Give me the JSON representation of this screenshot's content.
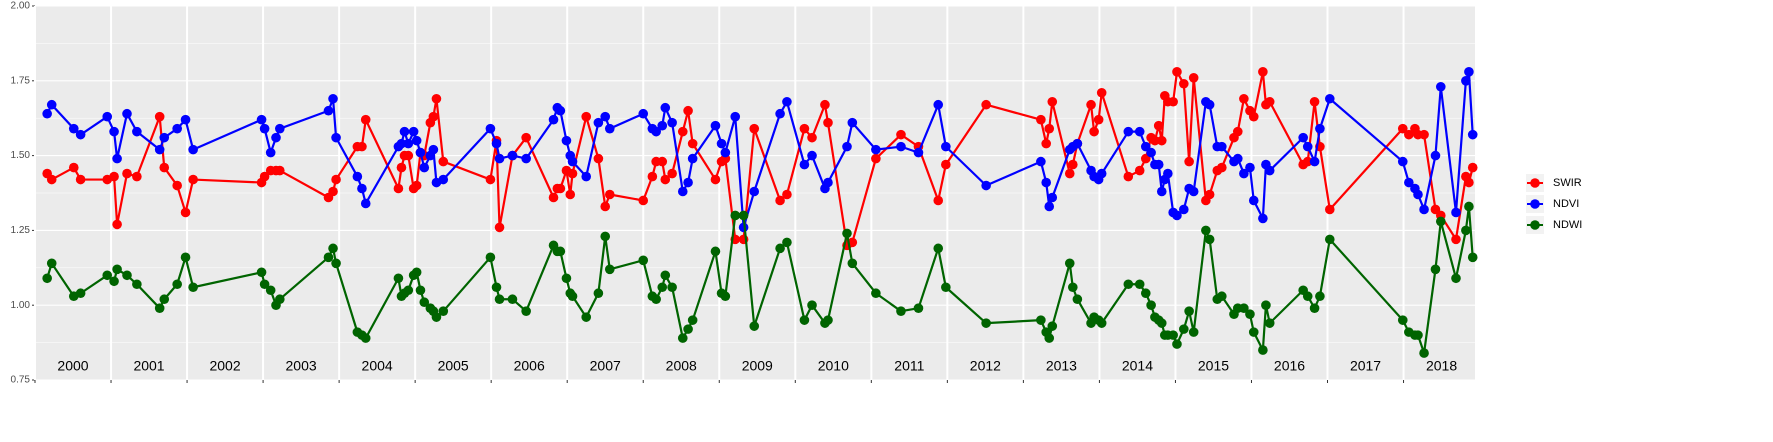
{
  "chart_data": {
    "type": "line",
    "xlim": [
      2000,
      2018.94
    ],
    "ylim": [
      0.75,
      2.0
    ],
    "yticks": [
      {
        "value": 0.75,
        "label": "0.75"
      },
      {
        "value": 1.0,
        "label": "1.00"
      },
      {
        "value": 1.25,
        "label": "1.25"
      },
      {
        "value": 1.5,
        "label": "1.50"
      },
      {
        "value": 1.75,
        "label": "1.75"
      },
      {
        "value": 2.0,
        "label": "2.00"
      }
    ],
    "periods": [
      {
        "label": "2000",
        "start": 2000,
        "end": 2001
      },
      {
        "label": "2001",
        "start": 2001,
        "end": 2002
      },
      {
        "label": "2002",
        "start": 2002,
        "end": 2003
      },
      {
        "label": "2003",
        "start": 2003,
        "end": 2004
      },
      {
        "label": "2004",
        "start": 2004,
        "end": 2005
      },
      {
        "label": "2005",
        "start": 2005,
        "end": 2006
      },
      {
        "label": "2006",
        "start": 2006,
        "end": 2007
      },
      {
        "label": "2007",
        "start": 2007,
        "end": 2008
      },
      {
        "label": "2008",
        "start": 2008,
        "end": 2009
      },
      {
        "label": "2009",
        "start": 2009,
        "end": 2010
      },
      {
        "label": "2010",
        "start": 2010,
        "end": 2011
      },
      {
        "label": "2011",
        "start": 2011,
        "end": 2012
      },
      {
        "label": "2012",
        "start": 2012,
        "end": 2013
      },
      {
        "label": "2013",
        "start": 2013,
        "end": 2014
      },
      {
        "label": "2014",
        "start": 2014,
        "end": 2015
      },
      {
        "label": "2015",
        "start": 2015,
        "end": 2016
      },
      {
        "label": "2016",
        "start": 2016,
        "end": 2017
      },
      {
        "label": "2017",
        "start": 2017,
        "end": 2018
      },
      {
        "label": "2018",
        "start": 2018,
        "end": 2019
      }
    ],
    "grid": true,
    "legend": "right",
    "x": [
      2000.16,
      2000.22,
      2000.51,
      2000.6,
      2000.95,
      2001.04,
      2001.08,
      2001.21,
      2001.34,
      2001.64,
      2001.7,
      2001.87,
      2001.98,
      2002.08,
      2002.98,
      2003.02,
      2003.1,
      2003.17,
      2003.22,
      2003.86,
      2003.92,
      2003.96,
      2004.24,
      2004.3,
      2004.35,
      2004.78,
      2004.82,
      2004.86,
      2004.91,
      2004.98,
      2005.02,
      2005.07,
      2005.12,
      2005.2,
      2005.24,
      2005.28,
      2005.37,
      2005.99,
      2006.07,
      2006.11,
      2006.28,
      2006.46,
      2006.82,
      2006.87,
      2006.91,
      2006.99,
      2007.04,
      2007.07,
      2007.25,
      2007.41,
      2007.5,
      2007.56,
      2008.0,
      2008.12,
      2008.17,
      2008.25,
      2008.29,
      2008.38,
      2008.52,
      2008.59,
      2008.65,
      2008.95,
      2009.03,
      2009.08,
      2009.21,
      2009.32,
      2009.46,
      2009.8,
      2009.89,
      2010.12,
      2010.22,
      2010.39,
      2010.43,
      2010.68,
      2010.75,
      2011.06,
      2011.39,
      2011.62,
      2011.88,
      2011.98,
      2012.51,
      2013.23,
      2013.3,
      2013.34,
      2013.38,
      2013.61,
      2013.65,
      2013.71,
      2013.89,
      2013.93,
      2013.99,
      2014.03,
      2014.38,
      2014.53,
      2014.61,
      2014.68,
      2014.73,
      2014.78,
      2014.82,
      2014.86,
      2014.9,
      2014.97,
      2015.02,
      2015.11,
      2015.18,
      2015.24,
      2015.4,
      2015.45,
      2015.55,
      2015.61,
      2015.77,
      2015.82,
      2015.9,
      2015.98,
      2016.03,
      2016.15,
      2016.19,
      2016.24,
      2016.68,
      2016.74,
      2016.83,
      2016.9,
      2017.03,
      2017.99,
      2018.07,
      2018.15,
      2018.19,
      2018.27,
      2018.42,
      2018.49,
      2018.69,
      2018.82,
      2018.86,
      2018.91
    ],
    "series": [
      {
        "name": "SWIR",
        "color": "#ff0000",
        "values": [
          1.44,
          1.42,
          1.46,
          1.42,
          1.42,
          1.43,
          1.27,
          1.44,
          1.43,
          1.63,
          1.46,
          1.4,
          1.31,
          1.42,
          1.41,
          1.43,
          1.45,
          1.45,
          1.45,
          1.36,
          1.38,
          1.42,
          1.53,
          1.53,
          1.62,
          1.39,
          1.46,
          1.5,
          1.5,
          1.39,
          1.4,
          1.51,
          1.5,
          1.61,
          1.63,
          1.69,
          1.48,
          1.42,
          1.55,
          1.26,
          1.5,
          1.56,
          1.36,
          1.39,
          1.39,
          1.45,
          1.37,
          1.44,
          1.63,
          1.49,
          1.33,
          1.37,
          1.35,
          1.43,
          1.48,
          1.48,
          1.42,
          1.44,
          1.58,
          1.65,
          1.54,
          1.42,
          1.48,
          1.49,
          1.22,
          1.22,
          1.59,
          1.35,
          1.37,
          1.59,
          1.56,
          1.67,
          1.61,
          1.2,
          1.21,
          1.49,
          1.57,
          1.53,
          1.35,
          1.47,
          1.67,
          1.62,
          1.54,
          1.59,
          1.68,
          1.44,
          1.47,
          1.54,
          1.67,
          1.58,
          1.62,
          1.71,
          1.43,
          1.45,
          1.49,
          1.56,
          1.55,
          1.6,
          1.55,
          1.7,
          1.68,
          1.68,
          1.78,
          1.74,
          1.48,
          1.76,
          1.35,
          1.37,
          1.45,
          1.46,
          1.56,
          1.58,
          1.69,
          1.65,
          1.63,
          1.78,
          1.67,
          1.68,
          1.47,
          1.48,
          1.68,
          1.53,
          1.32,
          1.59,
          1.57,
          1.59,
          1.57,
          1.57,
          1.32,
          1.3,
          1.22,
          1.43,
          1.41,
          1.46
        ]
      },
      {
        "name": "NDVI",
        "color": "#0000ff",
        "values": [
          1.64,
          1.67,
          1.59,
          1.57,
          1.63,
          1.58,
          1.49,
          1.64,
          1.58,
          1.52,
          1.56,
          1.59,
          1.62,
          1.52,
          1.62,
          1.59,
          1.51,
          1.56,
          1.59,
          1.65,
          1.69,
          1.56,
          1.43,
          1.39,
          1.34,
          1.53,
          1.54,
          1.58,
          1.54,
          1.58,
          1.55,
          1.51,
          1.46,
          1.5,
          1.52,
          1.41,
          1.42,
          1.59,
          1.54,
          1.49,
          1.5,
          1.49,
          1.62,
          1.66,
          1.65,
          1.55,
          1.5,
          1.48,
          1.43,
          1.61,
          1.63,
          1.59,
          1.64,
          1.59,
          1.58,
          1.6,
          1.66,
          1.61,
          1.38,
          1.41,
          1.49,
          1.6,
          1.54,
          1.51,
          1.63,
          1.26,
          1.38,
          1.64,
          1.68,
          1.47,
          1.5,
          1.39,
          1.41,
          1.53,
          1.61,
          1.52,
          1.53,
          1.51,
          1.67,
          1.53,
          1.4,
          1.48,
          1.41,
          1.33,
          1.36,
          1.52,
          1.53,
          1.54,
          1.45,
          1.43,
          1.42,
          1.44,
          1.58,
          1.58,
          1.53,
          1.51,
          1.47,
          1.47,
          1.38,
          1.42,
          1.44,
          1.31,
          1.3,
          1.32,
          1.39,
          1.38,
          1.68,
          1.67,
          1.53,
          1.53,
          1.48,
          1.49,
          1.44,
          1.46,
          1.35,
          1.29,
          1.47,
          1.45,
          1.56,
          1.53,
          1.48,
          1.59,
          1.69,
          1.48,
          1.41,
          1.39,
          1.37,
          1.32,
          1.5,
          1.73,
          1.31,
          1.75,
          1.78,
          1.57
        ]
      },
      {
        "name": "NDWI",
        "color": "#006400",
        "values": [
          1.09,
          1.14,
          1.03,
          1.04,
          1.1,
          1.08,
          1.12,
          1.1,
          1.07,
          0.99,
          1.02,
          1.07,
          1.16,
          1.06,
          1.11,
          1.07,
          1.05,
          1.0,
          1.02,
          1.16,
          1.19,
          1.14,
          0.91,
          0.9,
          0.89,
          1.09,
          1.03,
          1.04,
          1.05,
          1.1,
          1.11,
          1.05,
          1.01,
          0.99,
          0.98,
          0.96,
          0.98,
          1.16,
          1.06,
          1.02,
          1.02,
          0.98,
          1.2,
          1.18,
          1.18,
          1.09,
          1.04,
          1.03,
          0.96,
          1.04,
          1.23,
          1.12,
          1.15,
          1.03,
          1.02,
          1.06,
          1.1,
          1.06,
          0.89,
          0.92,
          0.95,
          1.18,
          1.04,
          1.03,
          1.3,
          1.3,
          0.93,
          1.19,
          1.21,
          0.95,
          1.0,
          0.94,
          0.95,
          1.24,
          1.14,
          1.04,
          0.98,
          0.99,
          1.19,
          1.06,
          0.94,
          0.95,
          0.91,
          0.89,
          0.93,
          1.14,
          1.06,
          1.02,
          0.94,
          0.96,
          0.95,
          0.94,
          1.07,
          1.07,
          1.04,
          1.0,
          0.96,
          0.95,
          0.94,
          0.9,
          0.9,
          0.9,
          0.87,
          0.92,
          0.98,
          0.91,
          1.25,
          1.22,
          1.02,
          1.03,
          0.97,
          0.99,
          0.99,
          0.97,
          0.91,
          0.85,
          1.0,
          0.94,
          1.05,
          1.03,
          0.99,
          1.03,
          1.22,
          0.95,
          0.91,
          0.9,
          0.9,
          0.84,
          1.12,
          1.28,
          1.09,
          1.25,
          1.33,
          1.16
        ]
      }
    ]
  }
}
